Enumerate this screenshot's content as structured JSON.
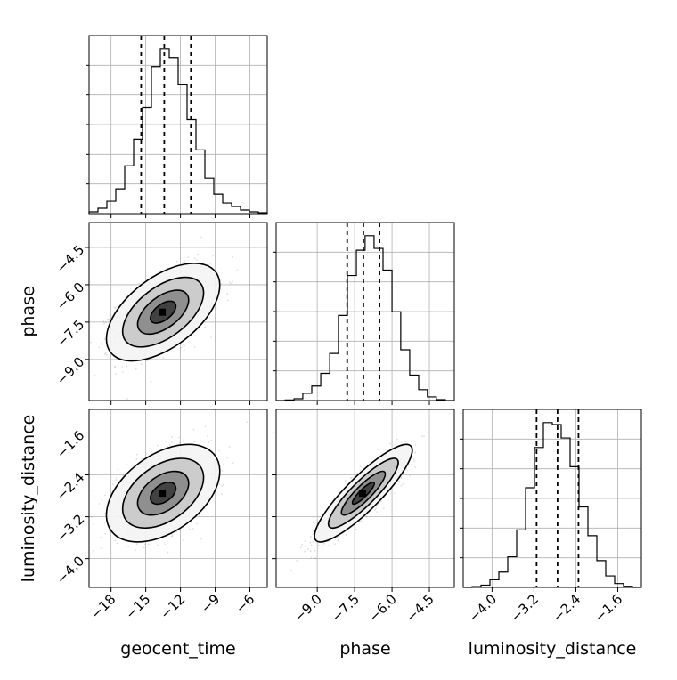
{
  "chart_data": {
    "type": "corner",
    "params": [
      "geocent_time",
      "phase",
      "luminosity_distance"
    ],
    "axis_labels": {
      "geocent_time": "geocent_time",
      "phase": "phase",
      "luminosity_distance": "luminosity_distance"
    },
    "ranges": {
      "geocent_time": [
        -19.9,
        -4.5
      ],
      "phase": [
        -10.65,
        -3.5
      ],
      "luminosity_distance": [
        -4.55,
        -1.15
      ]
    },
    "ticks": {
      "geocent_time": [
        {
          "v": -18,
          "label": "−18"
        },
        {
          "v": -15,
          "label": "−15"
        },
        {
          "v": -12,
          "label": "−12"
        },
        {
          "v": -9,
          "label": "−9"
        },
        {
          "v": -6,
          "label": "−6"
        }
      ],
      "phase": [
        {
          "v": -9.0,
          "label": "−9.0"
        },
        {
          "v": -7.5,
          "label": "−7.5"
        },
        {
          "v": -6.0,
          "label": "−6.0"
        },
        {
          "v": -4.5,
          "label": "−4.5"
        }
      ],
      "luminosity_distance": [
        {
          "v": -4.0,
          "label": "−4.0"
        },
        {
          "v": -3.2,
          "label": "−3.2"
        },
        {
          "v": -2.4,
          "label": "−2.4"
        },
        {
          "v": -1.6,
          "label": "−1.6"
        }
      ]
    },
    "histograms": {
      "geocent_time": {
        "bin_edges": [
          -19.9,
          -19.13,
          -18.36,
          -17.59,
          -16.82,
          -16.05,
          -15.28,
          -14.51,
          -13.74,
          -12.97,
          -12.2,
          -11.43,
          -10.66,
          -9.89,
          -9.12,
          -8.35,
          -7.58,
          -6.81,
          -6.04,
          -5.27,
          -4.5
        ],
        "counts": [
          0.01,
          0.03,
          0.07,
          0.14,
          0.27,
          0.42,
          0.6,
          0.83,
          0.93,
          0.88,
          0.73,
          0.53,
          0.36,
          0.2,
          0.11,
          0.06,
          0.04,
          0.02,
          0.01,
          0.005
        ],
        "quantiles": [
          -15.4,
          -13.4,
          -11.1
        ]
      },
      "phase": {
        "bin_edges": [
          -10.65,
          -10.29,
          -9.93,
          -9.58,
          -9.22,
          -8.86,
          -8.5,
          -8.15,
          -7.79,
          -7.43,
          -7.08,
          -6.72,
          -6.36,
          -6.0,
          -5.65,
          -5.29,
          -4.93,
          -4.58,
          -4.22,
          -3.86,
          -3.5
        ],
        "counts": [
          0.0,
          0.003,
          0.01,
          0.04,
          0.08,
          0.15,
          0.26,
          0.47,
          0.69,
          0.83,
          0.91,
          0.84,
          0.72,
          0.49,
          0.28,
          0.14,
          0.06,
          0.02,
          0.005,
          0.0
        ],
        "quantiles": [
          -7.8,
          -7.15,
          -6.5
        ]
      },
      "luminosity_distance": {
        "bin_edges": [
          -4.55,
          -4.38,
          -4.21,
          -4.04,
          -3.87,
          -3.7,
          -3.53,
          -3.36,
          -3.19,
          -3.02,
          -2.85,
          -2.68,
          -2.51,
          -2.34,
          -2.17,
          -2.0,
          -1.83,
          -1.66,
          -1.49,
          -1.32,
          -1.15
        ],
        "counts": [
          0.0,
          0.004,
          0.012,
          0.04,
          0.08,
          0.16,
          0.3,
          0.52,
          0.73,
          0.86,
          0.85,
          0.78,
          0.63,
          0.42,
          0.27,
          0.14,
          0.06,
          0.02,
          0.006,
          0.0
        ],
        "quantiles": [
          -3.15,
          -2.75,
          -2.35
        ]
      }
    },
    "pairs": [
      {
        "x": "geocent_time",
        "y": "phase",
        "center": [
          -13.5,
          -7.1
        ],
        "sd": [
          2.0,
          0.8
        ],
        "corr": 0.55
      },
      {
        "x": "geocent_time",
        "y": "luminosity_distance",
        "center": [
          -13.5,
          -2.75
        ],
        "sd": [
          2.0,
          0.38
        ],
        "corr": 0.45
      },
      {
        "x": "phase",
        "y": "luminosity_distance",
        "center": [
          -7.15,
          -2.75
        ],
        "sd": [
          0.8,
          0.38
        ],
        "corr": 0.88
      }
    ],
    "grid": true,
    "quantile_line_style": "dashed"
  }
}
